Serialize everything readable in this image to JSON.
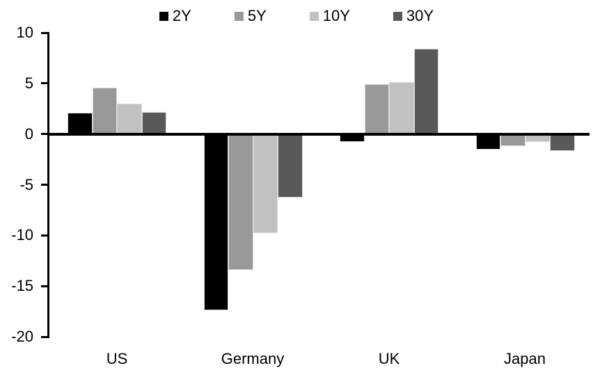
{
  "chart_data": {
    "type": "bar",
    "title": "",
    "xlabel": "",
    "ylabel": "",
    "grid": false,
    "legend_position": "top",
    "categories": [
      "US",
      "Germany",
      "UK",
      "Japan"
    ],
    "series": [
      {
        "name": "2Y",
        "color": "#000000",
        "values": [
          2.1,
          -17.4,
          -0.8,
          -1.5
        ]
      },
      {
        "name": "5Y",
        "color": "#999999",
        "values": [
          4.6,
          -13.4,
          4.9,
          -1.2
        ]
      },
      {
        "name": "10Y",
        "color": "#c1c1c1",
        "values": [
          3.0,
          -9.8,
          5.1,
          -0.8
        ]
      },
      {
        "name": "30Y",
        "color": "#595959",
        "values": [
          2.2,
          -6.3,
          8.4,
          -1.7
        ]
      }
    ],
    "ylim": [
      -20,
      10
    ],
    "yticks": [
      10,
      5,
      0,
      -5,
      -10,
      -15,
      -20
    ],
    "axis_color": "#000000",
    "bar_border_color": "#d9d9d9",
    "background_color": "#ffffff"
  }
}
